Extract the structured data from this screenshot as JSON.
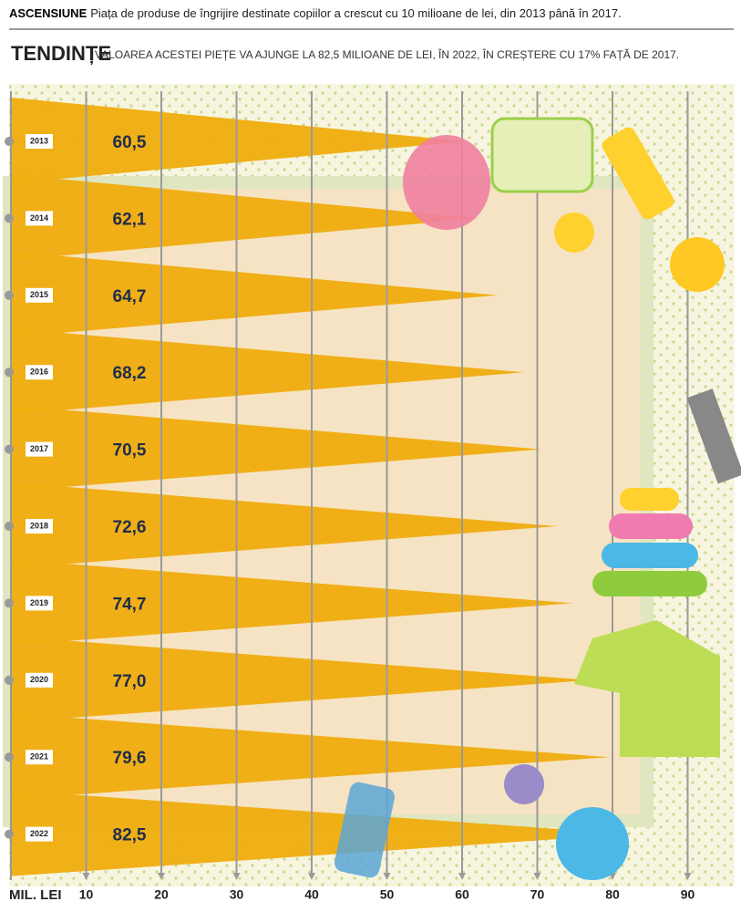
{
  "header": {
    "kicker": "ASCENSIUNE",
    "text": "Piața de produse de îngrijire destinate copiilor a crescut cu 10 milioane de lei, din 2013 până în 2017.",
    "trend_title": "TENDINȚE",
    "trend_text": "VALOAREA ACESTEI PIEȚE VA AJUNGE LA 82,5 MILIOANE DE LEI, ÎN 2022, ÎN CREȘTERE CU 17% FAȚĂ DE 2017."
  },
  "chart_data": {
    "type": "bar",
    "orientation": "horizontal",
    "x_label": "MIL. LEI",
    "categories": [
      "2013",
      "2014",
      "2015",
      "2016",
      "2017",
      "2018",
      "2019",
      "2020",
      "2021",
      "2022"
    ],
    "values": [
      60.5,
      62.1,
      64.7,
      68.2,
      70.5,
      72.6,
      74.7,
      77.0,
      79.6,
      82.5
    ],
    "value_labels": [
      "60,5",
      "62,1",
      "64,7",
      "68,2",
      "70,5",
      "72,6",
      "74,7",
      "77,0",
      "79,6",
      "82,5"
    ],
    "color": "#f0ad12",
    "xlim": [
      0,
      90
    ],
    "xticks": [
      10,
      20,
      30,
      40,
      50,
      60,
      70,
      80,
      90
    ],
    "grid": true
  }
}
